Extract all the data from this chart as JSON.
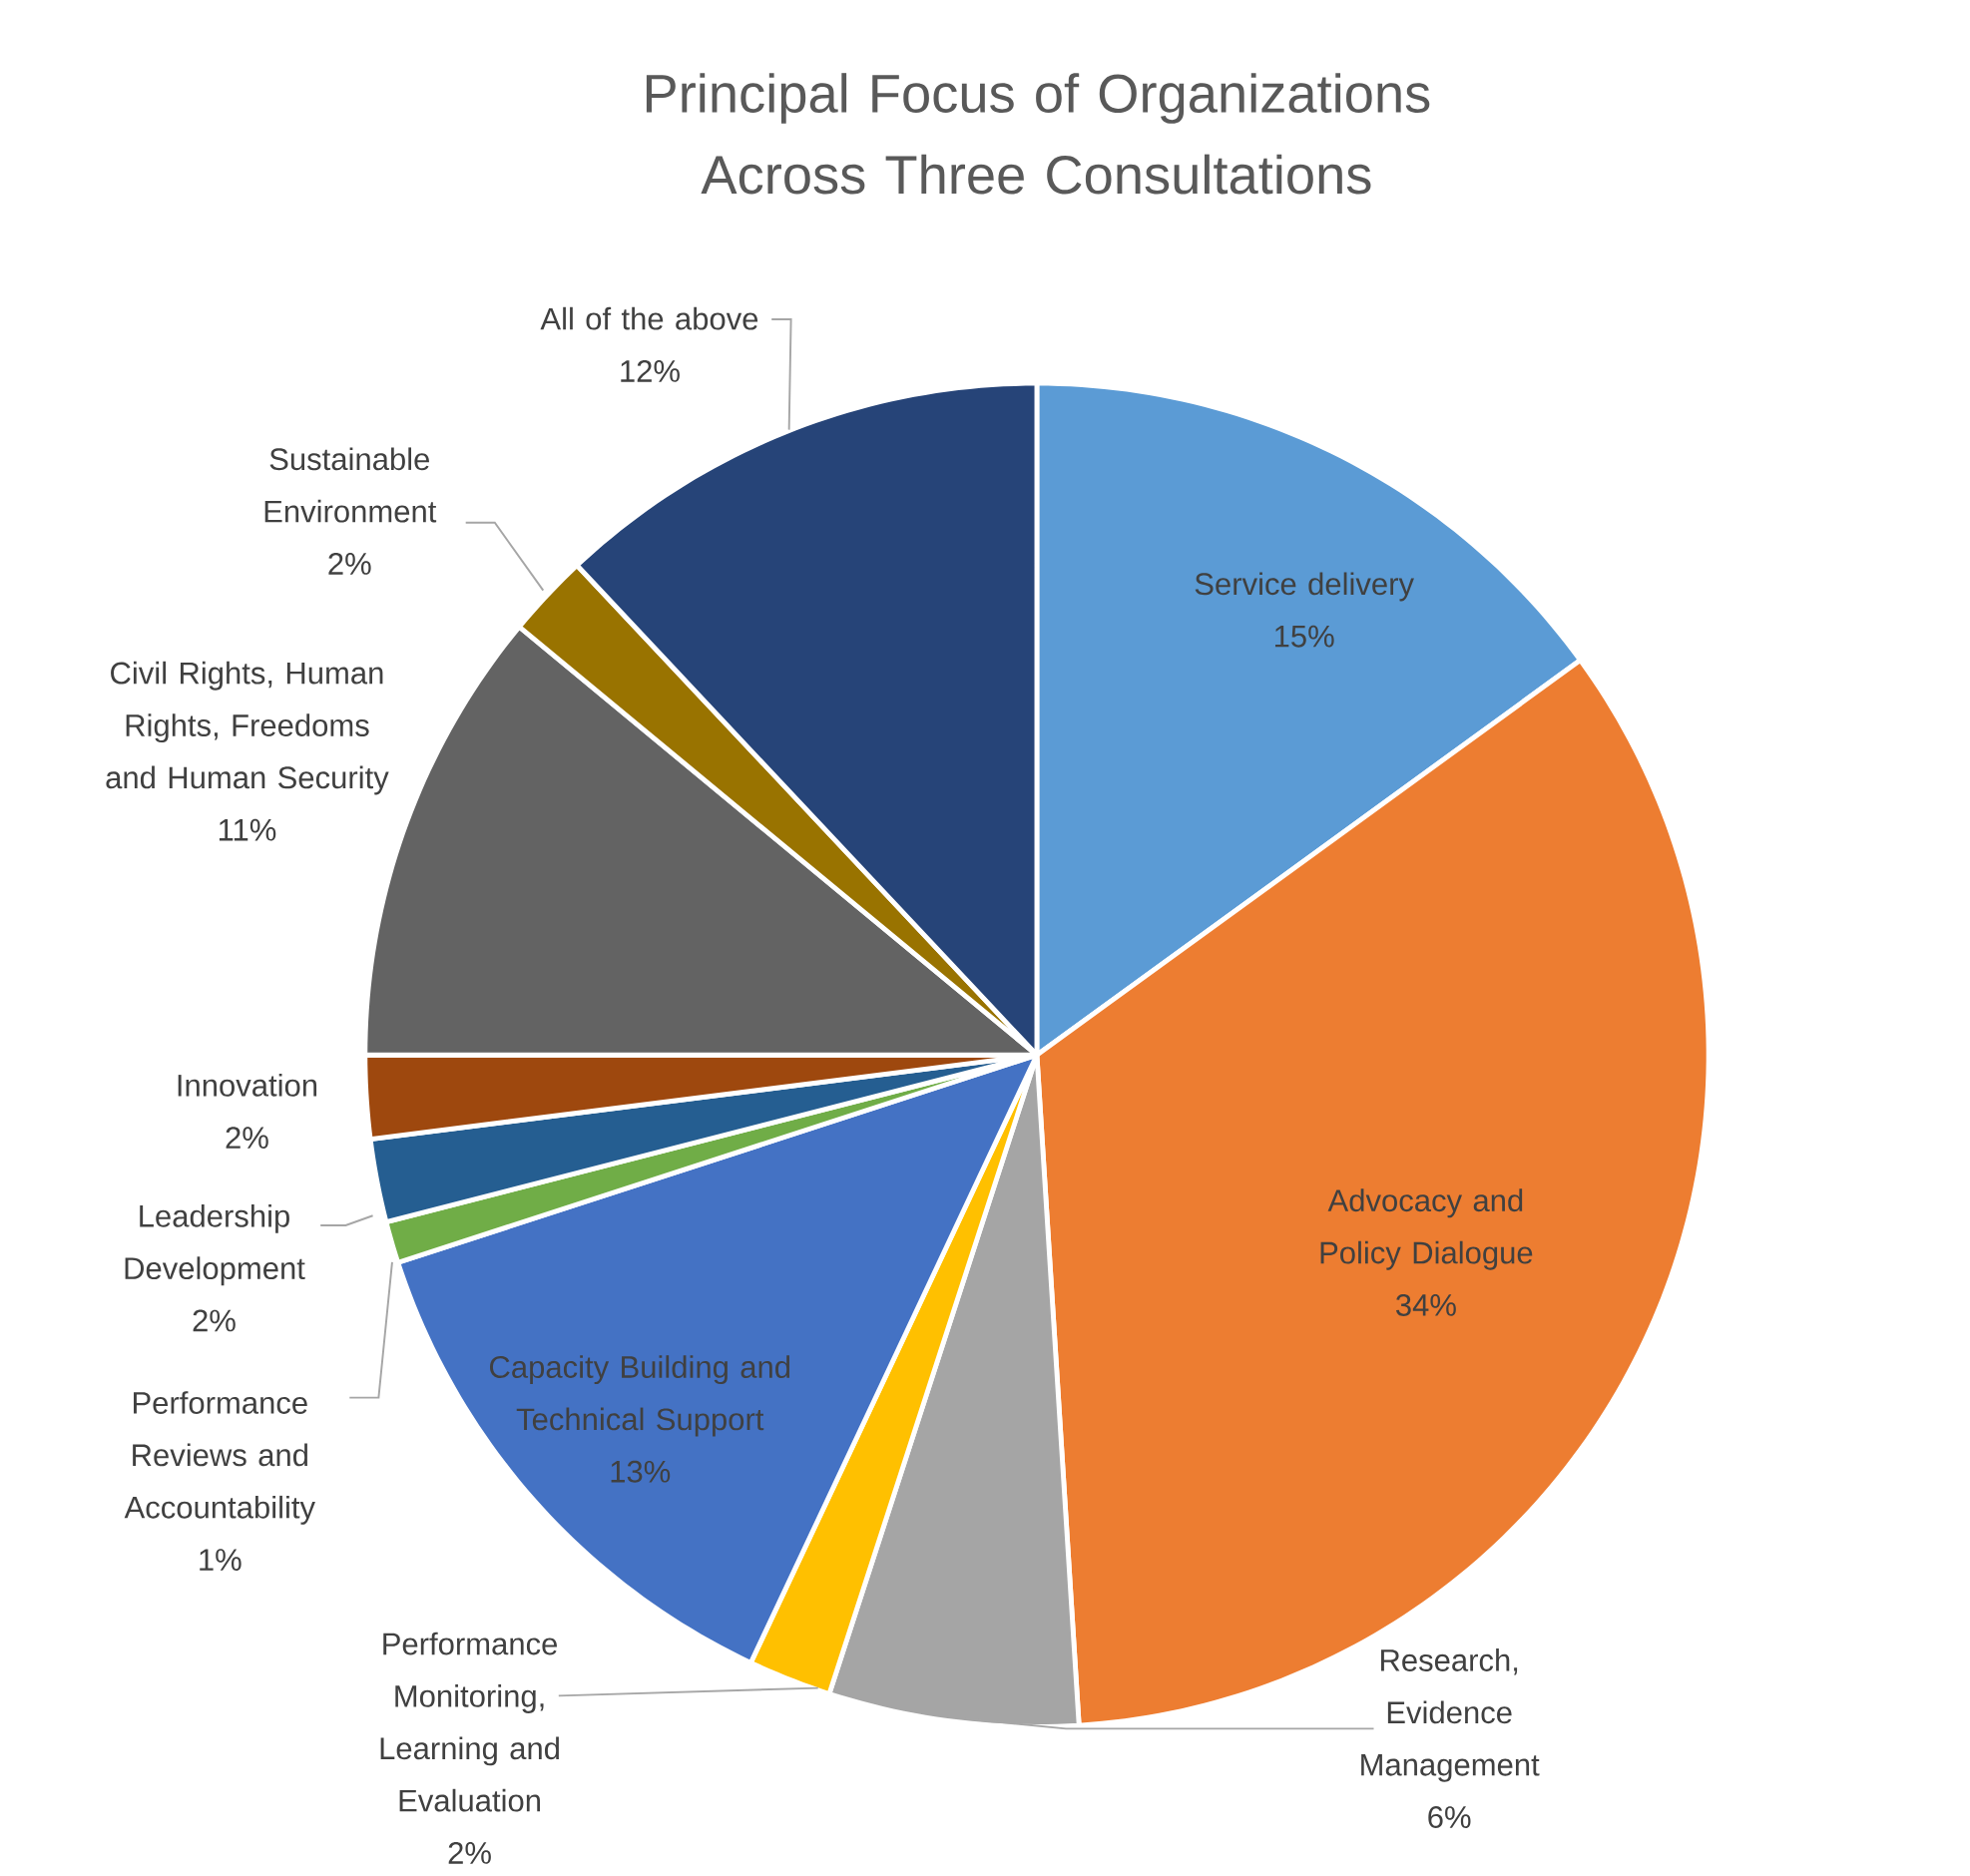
{
  "chart_data": {
    "type": "pie",
    "title": "Principal Focus of Organizations Across Three Consultations",
    "categories": [
      "Service delivery",
      "Advocacy and Policy Dialogue",
      "Research, Evidence Management",
      "Performance Monitoring, Learning and Evaluation",
      "Capacity Building and Technical Support",
      "Performance Reviews and Accountability",
      "Leadership Development",
      "Innovation",
      "Civil Rights, Human Rights, Freedoms and Human Security",
      "Sustainable Environment",
      "All of the above"
    ],
    "values": [
      15,
      34,
      6,
      2,
      13,
      1,
      2,
      2,
      11,
      2,
      12
    ],
    "value_labels": [
      "15%",
      "34%",
      "6%",
      "2%",
      "13%",
      "1%",
      "2%",
      "2%",
      "11%",
      "2%",
      "12%"
    ],
    "colors": [
      "#5b9bd5",
      "#ed7d31",
      "#a5a5a5",
      "#ffc000",
      "#4472c4",
      "#70ad47",
      "#255e91",
      "#9e480e",
      "#636363",
      "#997300",
      "#264478"
    ]
  }
}
